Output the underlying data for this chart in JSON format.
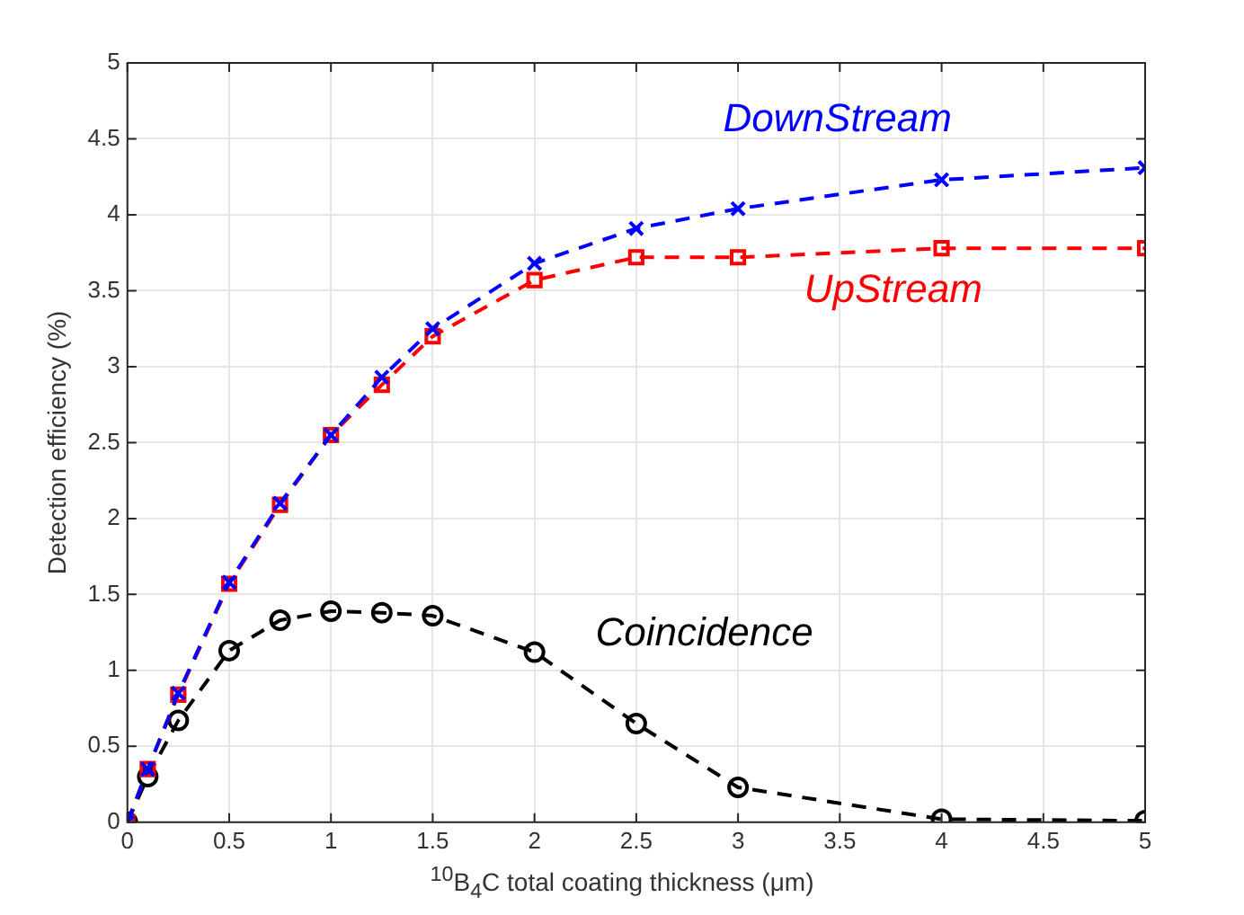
{
  "chart_data": {
    "type": "line",
    "xlabel": "$^{10}$B$_{4}$C total coating thickness (μm)",
    "ylabel": "Detection efficiency (%)",
    "x": [
      0,
      0.1,
      0.25,
      0.5,
      0.75,
      1,
      1.25,
      1.5,
      2,
      2.5,
      3,
      4,
      5
    ],
    "series": [
      {
        "name": "DownStream",
        "color": "#0000ff",
        "marker": "cross",
        "values": [
          0,
          0.35,
          0.85,
          1.58,
          2.1,
          2.55,
          2.93,
          3.25,
          3.68,
          3.91,
          4.04,
          4.23,
          4.31
        ]
      },
      {
        "name": "UpStream",
        "color": "#ff0000",
        "marker": "square",
        "values": [
          0,
          0.35,
          0.84,
          1.57,
          2.09,
          2.55,
          2.88,
          3.2,
          3.57,
          3.72,
          3.72,
          3.78,
          3.78
        ]
      },
      {
        "name": "Coincidence",
        "color": "#000000",
        "marker": "circle",
        "values": [
          0,
          0.3,
          0.67,
          1.13,
          1.33,
          1.39,
          1.38,
          1.36,
          1.12,
          0.65,
          0.23,
          0.02,
          0.01
        ]
      }
    ],
    "xlim": [
      0,
      5
    ],
    "xticks": [
      0,
      0.5,
      1,
      1.5,
      2,
      2.5,
      3,
      3.5,
      4,
      4.5,
      5
    ],
    "ylim": [
      0,
      5
    ],
    "yticks": [
      0,
      0.5,
      1,
      1.5,
      2,
      2.5,
      3,
      3.5,
      4,
      4.5,
      5
    ],
    "grid": true,
    "legend": false,
    "line_style": "dashed"
  }
}
